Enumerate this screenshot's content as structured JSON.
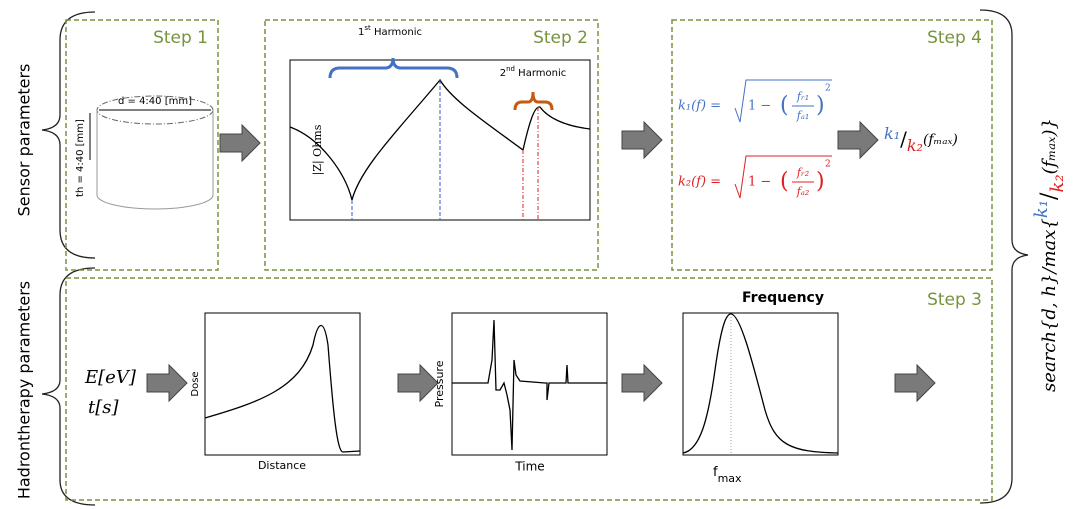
{
  "sensor_label": "Sensor parameters",
  "hadron_label": "Hadrontherapy parameters",
  "step1": {
    "title": "Step 1",
    "diameter": "d = 4:40 [mm]",
    "thickness": "th = 4:40 [mm]"
  },
  "step2": {
    "title": "Step 2",
    "first_harmonic": {
      "number": "1",
      "suffix": "st",
      "text": " Harmonic"
    },
    "second_harmonic": {
      "number": "2",
      "suffix": "nd",
      "text": " Harmonic"
    },
    "y_label": "|Z| Ohms"
  },
  "step4": {
    "title": "Step 4",
    "k1": {
      "lhs": "k₁(f) =",
      "one": "1 −",
      "num": "fᵣ₁",
      "den": "fₐ₁",
      "exp": "2"
    },
    "k2": {
      "lhs": "k₂(f) =",
      "one": "1 −",
      "num": "fᵣ₂",
      "den": "fₐ₂",
      "exp": "2"
    },
    "ratio": {
      "num": "k₁",
      "slash": "/",
      "den": "k₂",
      "arg": "(fₘₐₓ)"
    }
  },
  "step3": {
    "title": "Step 3",
    "energy": "E[eV]",
    "time": "t[s]",
    "dose_plot": {
      "y_label": "Dose",
      "x_label": "Distance"
    },
    "pressure_plot": {
      "y_label": "Pressure",
      "x_label": "Time"
    },
    "frequency_plot": {
      "title": "Frequency",
      "x_label": "f",
      "x_label_sub": "max"
    }
  },
  "objective": {
    "prefix": "search{d, h}/max{",
    "num": "k₁",
    "slash": "/",
    "den": "k₂",
    "suffix": "(fₘₐₓ)}"
  }
}
